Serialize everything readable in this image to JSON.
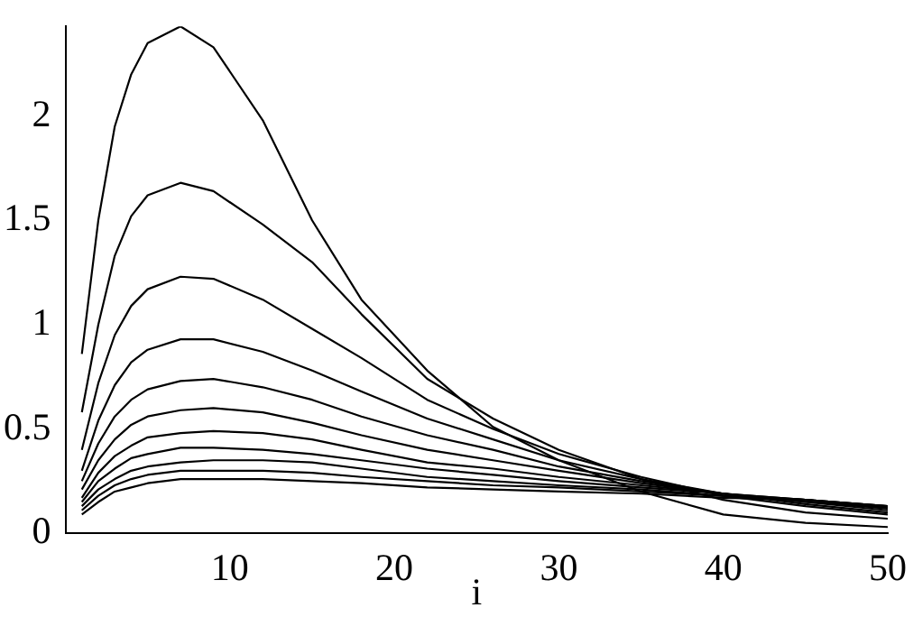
{
  "chart_data": {
    "type": "line",
    "xlabel": "i",
    "x": [
      1,
      2,
      3,
      4,
      5,
      7,
      9,
      12,
      15,
      18,
      22,
      26,
      30,
      35,
      40,
      45,
      50
    ],
    "series": [
      {
        "color": "#000000",
        "values": [
          0.86,
          1.5,
          1.95,
          2.2,
          2.35,
          2.43,
          2.33,
          1.98,
          1.5,
          1.12,
          0.78,
          0.51,
          0.35,
          0.2,
          0.09,
          0.05,
          0.03
        ]
      },
      {
        "color": "#000000",
        "values": [
          0.58,
          1.0,
          1.33,
          1.52,
          1.62,
          1.68,
          1.64,
          1.48,
          1.3,
          1.05,
          0.74,
          0.55,
          0.4,
          0.26,
          0.16,
          0.1,
          0.07
        ]
      },
      {
        "color": "#000000",
        "values": [
          0.4,
          0.72,
          0.95,
          1.09,
          1.17,
          1.23,
          1.22,
          1.12,
          0.98,
          0.84,
          0.64,
          0.5,
          0.38,
          0.27,
          0.18,
          0.13,
          0.09
        ]
      },
      {
        "color": "#000000",
        "values": [
          0.3,
          0.54,
          0.71,
          0.82,
          0.88,
          0.93,
          0.93,
          0.87,
          0.78,
          0.68,
          0.55,
          0.45,
          0.35,
          0.26,
          0.19,
          0.14,
          0.1
        ]
      },
      {
        "color": "#000000",
        "values": [
          0.25,
          0.43,
          0.56,
          0.64,
          0.69,
          0.73,
          0.74,
          0.7,
          0.64,
          0.56,
          0.47,
          0.4,
          0.32,
          0.25,
          0.19,
          0.15,
          0.11
        ]
      },
      {
        "color": "#000000",
        "values": [
          0.21,
          0.35,
          0.45,
          0.52,
          0.56,
          0.59,
          0.6,
          0.58,
          0.53,
          0.47,
          0.4,
          0.35,
          0.3,
          0.24,
          0.19,
          0.15,
          0.12
        ]
      },
      {
        "color": "#000000",
        "values": [
          0.17,
          0.29,
          0.37,
          0.42,
          0.46,
          0.48,
          0.49,
          0.48,
          0.45,
          0.4,
          0.34,
          0.31,
          0.27,
          0.23,
          0.19,
          0.16,
          0.12
        ]
      },
      {
        "color": "#000000",
        "values": [
          0.15,
          0.25,
          0.31,
          0.36,
          0.38,
          0.41,
          0.41,
          0.4,
          0.38,
          0.35,
          0.31,
          0.28,
          0.25,
          0.22,
          0.19,
          0.16,
          0.12
        ]
      },
      {
        "color": "#000000",
        "values": [
          0.13,
          0.21,
          0.26,
          0.3,
          0.32,
          0.34,
          0.35,
          0.35,
          0.34,
          0.31,
          0.27,
          0.25,
          0.23,
          0.21,
          0.18,
          0.16,
          0.13
        ]
      },
      {
        "color": "#000000",
        "values": [
          0.11,
          0.18,
          0.23,
          0.26,
          0.28,
          0.3,
          0.3,
          0.3,
          0.29,
          0.27,
          0.25,
          0.23,
          0.22,
          0.2,
          0.18,
          0.16,
          0.13
        ]
      },
      {
        "color": "#000000",
        "values": [
          0.09,
          0.15,
          0.2,
          0.22,
          0.24,
          0.26,
          0.26,
          0.26,
          0.25,
          0.24,
          0.22,
          0.21,
          0.2,
          0.19,
          0.17,
          0.16,
          0.13
        ]
      }
    ],
    "xlim": [
      0,
      50
    ],
    "xticks": [
      10,
      20,
      30,
      40,
      50
    ],
    "ylim": [
      0,
      2.43
    ],
    "yticks": [
      0,
      0.5,
      1,
      1.5,
      2
    ],
    "grid": false,
    "legend": false,
    "marker": "none",
    "line_style": "solid"
  }
}
